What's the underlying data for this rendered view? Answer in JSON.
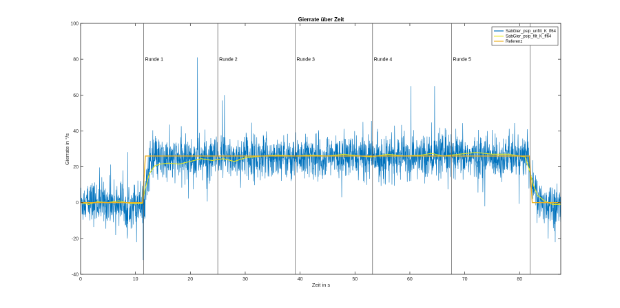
{
  "chart_data": {
    "type": "line",
    "title": "Gierrate über Zeit",
    "xlabel": "Zeit in s",
    "ylabel": "Gierrate in °/s",
    "xlim": [
      0,
      87.5
    ],
    "ylim": [
      -40,
      100
    ],
    "xticks": [
      0,
      10,
      20,
      30,
      40,
      50,
      60,
      70,
      80
    ],
    "yticks": [
      -40,
      -20,
      0,
      20,
      40,
      60,
      80,
      100
    ],
    "grid": false,
    "legend_position": "top-right",
    "series": [
      {
        "name": "SabGier_psip_unfilt_K_ff64",
        "color": "#0072BD",
        "style": "noisy",
        "level_points": [
          [
            0,
            0
          ],
          [
            11.2,
            0
          ],
          [
            11.6,
            2
          ],
          [
            12.5,
            22
          ],
          [
            14,
            23.5
          ],
          [
            20,
            24.5
          ],
          [
            30,
            25.5
          ],
          [
            81.6,
            25.5
          ],
          [
            82.3,
            10
          ],
          [
            83.5,
            0
          ],
          [
            87.5,
            0
          ]
        ],
        "noise_std": 6,
        "spikes": [
          [
            21.3,
            81
          ],
          [
            26.2,
            60
          ],
          [
            25.8,
            57
          ],
          [
            11.4,
            -32
          ],
          [
            10.2,
            -22
          ],
          [
            8.5,
            -20
          ],
          [
            86.5,
            -22
          ],
          [
            85.2,
            -20
          ],
          [
            60.2,
            65
          ],
          [
            64.5,
            65
          ]
        ]
      },
      {
        "name": "SabGier_psip_filt_K_ff64",
        "color": "#E8E81A",
        "style": "smooth",
        "points": [
          [
            0,
            0
          ],
          [
            1.5,
            -1
          ],
          [
            3,
            0.5
          ],
          [
            5,
            0
          ],
          [
            7,
            1
          ],
          [
            9,
            -0.5
          ],
          [
            11.2,
            -0.5
          ],
          [
            11.8,
            8
          ],
          [
            12.5,
            16
          ],
          [
            13.5,
            20.5
          ],
          [
            14.5,
            21.5
          ],
          [
            16,
            22
          ],
          [
            18,
            21.5
          ],
          [
            20,
            23
          ],
          [
            22,
            24.5
          ],
          [
            24,
            23.5
          ],
          [
            26,
            24.5
          ],
          [
            28,
            23
          ],
          [
            30,
            25
          ],
          [
            33,
            26
          ],
          [
            36,
            26.5
          ],
          [
            39,
            26
          ],
          [
            42,
            26.5
          ],
          [
            45,
            26
          ],
          [
            48,
            27
          ],
          [
            51,
            26
          ],
          [
            53,
            25.5
          ],
          [
            56,
            27
          ],
          [
            59,
            26
          ],
          [
            62,
            26.5
          ],
          [
            64,
            27.5
          ],
          [
            66,
            26
          ],
          [
            69,
            27
          ],
          [
            72,
            28
          ],
          [
            75,
            27
          ],
          [
            78,
            27
          ],
          [
            81,
            25.5
          ],
          [
            81.8,
            18
          ],
          [
            82.5,
            10
          ],
          [
            83.3,
            4
          ],
          [
            84.5,
            1
          ],
          [
            86,
            -1
          ],
          [
            87.5,
            -1
          ]
        ]
      },
      {
        "name": "Referenz",
        "color": "#EDB120",
        "style": "step",
        "points": [
          [
            0,
            0
          ],
          [
            11.3,
            0
          ],
          [
            11.8,
            26
          ],
          [
            81.8,
            26
          ],
          [
            82.3,
            0
          ],
          [
            87.5,
            0
          ]
        ]
      }
    ],
    "vertical_lines": [
      {
        "x": 11.5,
        "label": "Runde 1"
      },
      {
        "x": 25,
        "label": "Runde 2"
      },
      {
        "x": 39.1,
        "label": "Runde 3"
      },
      {
        "x": 53.2,
        "label": "Runde 4"
      },
      {
        "x": 67.6,
        "label": "Runde 5"
      },
      {
        "x": 81.9,
        "label": ""
      }
    ],
    "annotation_y": 80
  }
}
